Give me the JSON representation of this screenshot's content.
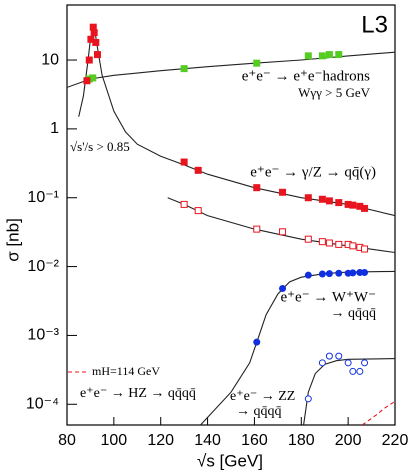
{
  "chart_data": {
    "type": "scatter",
    "corner_label": "L3",
    "x_label": "√s [GeV]",
    "y_label": "σ [nb]",
    "xlim": [
      80,
      220
    ],
    "xticks": [
      80,
      100,
      120,
      140,
      160,
      180,
      200,
      220
    ],
    "ylim": [
      5e-05,
      63
    ],
    "log_y": true,
    "yticks": [
      10,
      1,
      {
        "value": 0.1,
        "label": "10⁻¹"
      },
      {
        "value": 0.01,
        "label": "10⁻²"
      },
      {
        "value": 0.001,
        "label": "10⁻³"
      },
      {
        "value": 0.0001,
        "label": "10⁻⁴"
      }
    ],
    "annotations": [
      "e⁺e⁻ → e⁺e⁻hadrons",
      "Wγγ > 5 GeV",
      "e⁺e⁻ → γ/Z → qq̄(γ)",
      "√s'/s > 0.85",
      "e⁺e⁻ → W⁺W⁻",
      "→ qq̄qq̄",
      "mH=114 GeV",
      "e⁺e⁻ → HZ → qq̄qq̄",
      "e⁺e⁻ → ZZ",
      "→ qq̄qq̄"
    ],
    "series": [
      {
        "style": "line",
        "color": "#222222",
        "x": [
          80,
          90,
          100,
          120,
          140,
          160,
          180,
          200,
          220
        ],
        "values": [
          4,
          5.3,
          6,
          7,
          8,
          9,
          10,
          11.5,
          13
        ]
      },
      {
        "style": "line",
        "color": "#222222",
        "x": [
          85,
          87,
          89,
          90,
          91.2,
          92,
          93,
          95,
          100,
          105,
          110,
          120,
          130,
          140,
          160,
          180,
          200,
          220
        ],
        "values": [
          1.5,
          3,
          10,
          20,
          30,
          25,
          15,
          6,
          1.8,
          0.9,
          0.6,
          0.4,
          0.3,
          0.22,
          0.14,
          0.1,
          0.08,
          0.055
        ]
      },
      {
        "style": "line",
        "color": "#222222",
        "x": [
          123,
          130,
          140,
          160,
          180,
          200,
          220
        ],
        "values": [
          0.1,
          0.08,
          0.055,
          0.035,
          0.025,
          0.02,
          0.016
        ]
      },
      {
        "style": "line",
        "color": "#222222",
        "x": [
          137,
          150,
          158,
          162,
          165,
          170,
          175,
          180,
          190,
          200,
          220
        ],
        "values": [
          5e-05,
          0.00015,
          0.0004,
          0.001,
          0.002,
          0.004,
          0.006,
          0.007,
          0.0079,
          0.0083,
          0.0085
        ]
      },
      {
        "style": "line",
        "color": "#222222",
        "x": [
          181,
          183,
          186,
          190,
          195,
          200,
          220
        ],
        "values": [
          5e-05,
          0.00015,
          0.00028,
          0.00038,
          0.00043,
          0.00045,
          0.00046
        ]
      },
      {
        "style": "dashed",
        "color": "#e8141e",
        "x": [
          206,
          212,
          216,
          220
        ],
        "values": [
          5e-05,
          7e-05,
          9e-05,
          0.00011
        ]
      },
      {
        "style": "square",
        "color": "#55cc22",
        "x": [
          89.5,
          91,
          130,
          161,
          183,
          189,
          192,
          196
        ],
        "values": [
          5.3,
          5.5,
          7.5,
          9,
          11.5,
          11.5,
          12,
          12
        ]
      },
      {
        "style": "square",
        "color": "#e8141e",
        "x": [
          88.5,
          89.5,
          90.2,
          91.2,
          91.6,
          92.3,
          93,
          130,
          136,
          161,
          172,
          183,
          189,
          192,
          196,
          200,
          202,
          205,
          207
        ],
        "values": [
          5,
          10,
          20,
          30,
          25,
          18,
          12,
          0.33,
          0.25,
          0.14,
          0.12,
          0.1,
          0.095,
          0.09,
          0.085,
          0.08,
          0.078,
          0.075,
          0.07
        ]
      },
      {
        "style": "open-square",
        "color": "#e8141e",
        "x": [
          130,
          136,
          161,
          172,
          183,
          189,
          192,
          196,
          200,
          202,
          205,
          207
        ],
        "values": [
          0.08,
          0.065,
          0.035,
          0.032,
          0.025,
          0.023,
          0.022,
          0.021,
          0.021,
          0.02,
          0.019,
          0.018
        ]
      },
      {
        "style": "circle",
        "color": "#1030e0",
        "x": [
          161,
          172,
          183,
          189,
          192,
          196,
          200,
          202,
          205,
          207
        ],
        "values": [
          0.0008,
          0.0048,
          0.0075,
          0.0078,
          0.0079,
          0.008,
          0.008,
          0.0081,
          0.0082,
          0.0082
        ]
      },
      {
        "style": "open-circle",
        "color": "#1030e0",
        "x": [
          183,
          189,
          192,
          196,
          200,
          202,
          205,
          207
        ],
        "values": [
          0.00012,
          0.0004,
          0.0005,
          0.0005,
          0.0004,
          0.0003,
          0.0003,
          0.0004
        ]
      }
    ]
  }
}
